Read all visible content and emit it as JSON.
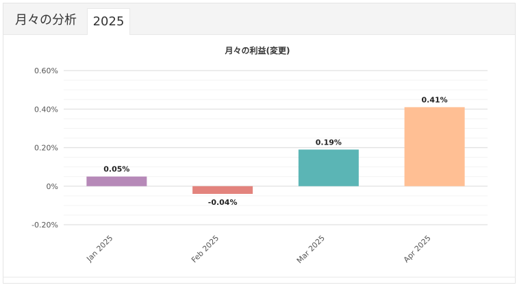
{
  "tabs": {
    "title": "月々の分析",
    "year": "2025"
  },
  "chart_data": {
    "type": "bar",
    "title": "月々の利益(変更)",
    "xlabel": "",
    "ylabel": "",
    "categories": [
      "Jan 2025",
      "Feb 2025",
      "Mar 2025",
      "Apr 2025"
    ],
    "values": [
      0.05,
      -0.04,
      0.19,
      0.41
    ],
    "value_labels": [
      "0.05%",
      "-0.04%",
      "0.19%",
      "0.41%"
    ],
    "colors": [
      "#b689b8",
      "#e3837d",
      "#5bb5b5",
      "#ffbf94"
    ],
    "ylim": [
      -0.2,
      0.6
    ],
    "yticks": [
      0.6,
      0.4,
      0.2,
      0,
      -0.2
    ],
    "ytick_labels": [
      "0.60%",
      "0.40%",
      "0.20%",
      "0%",
      "-0.20%"
    ],
    "grid": true,
    "legend": "none"
  }
}
